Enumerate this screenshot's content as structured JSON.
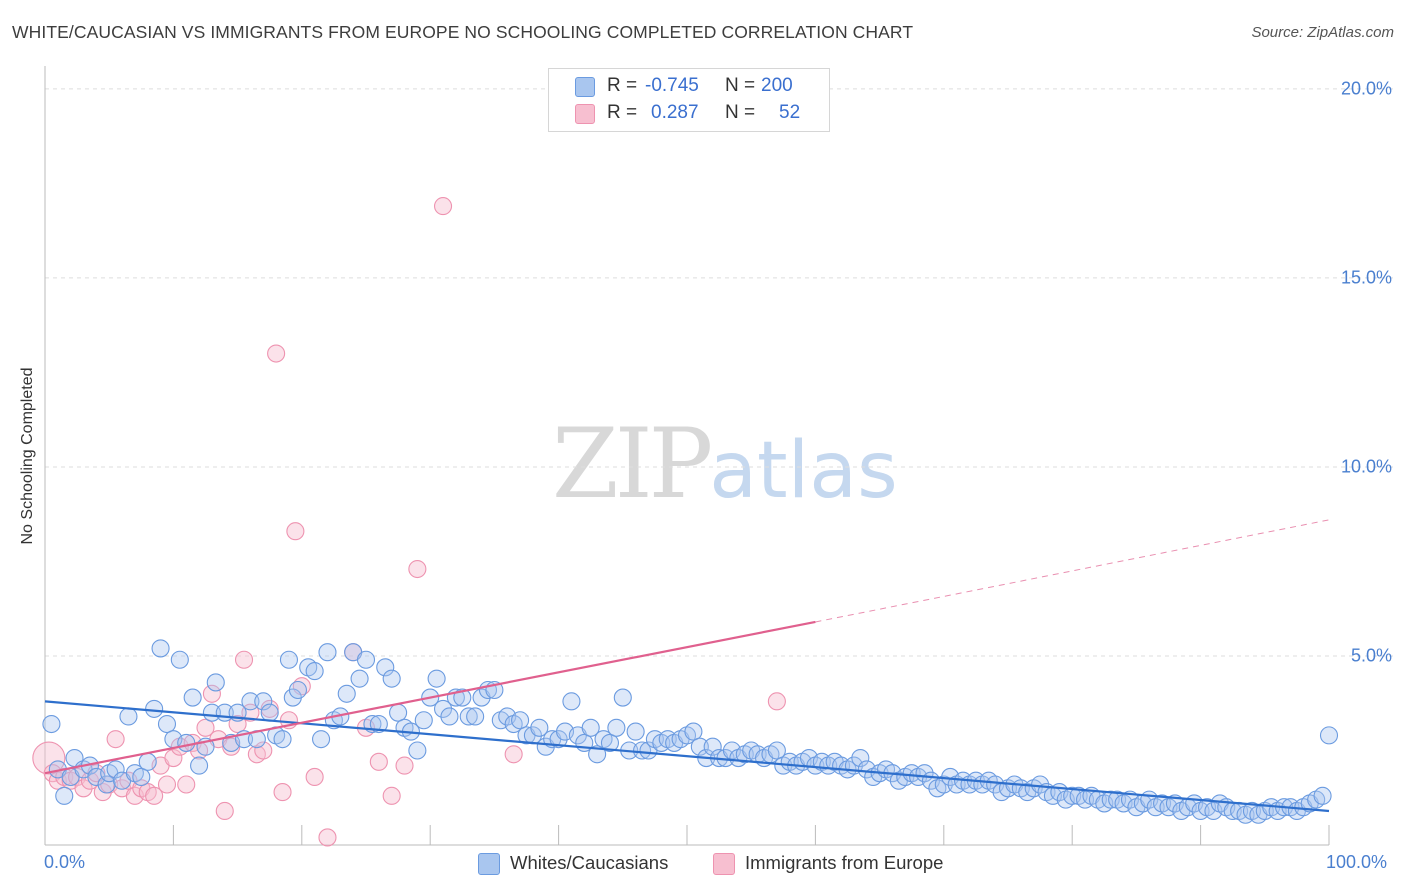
{
  "header": {
    "title": "WHITE/CAUCASIAN VS IMMIGRANTS FROM EUROPE NO SCHOOLING COMPLETED CORRELATION CHART",
    "source": "Source: ZipAtlas.com"
  },
  "watermark": {
    "zip": "ZIP",
    "atlas": "atlas"
  },
  "legend": {
    "rows": [
      {
        "r_label": "R =",
        "r_value": "-0.745",
        "n_label": "N =",
        "n_value": "200"
      },
      {
        "r_label": "R =",
        "r_value": "0.287",
        "n_label": "N =",
        "n_value": "52"
      }
    ]
  },
  "bottom_legend": {
    "items": [
      "Whites/Caucasians",
      "Immigrants from Europe"
    ]
  },
  "colors": {
    "blue_fill": "#a9c6ef",
    "blue_stroke": "#6b9be0",
    "blue_line": "#2e6fcc",
    "pink_fill": "#f7bfd0",
    "pink_stroke": "#ee93b0",
    "pink_line": "#e0608e",
    "tick_text": "#4a7fcf",
    "grid": "#dedede"
  },
  "chart_data": {
    "type": "scatter",
    "title": "WHITE/CAUCASIAN VS IMMIGRANTS FROM EUROPE NO SCHOOLING COMPLETED CORRELATION CHART",
    "xlabel": "",
    "ylabel": "No Schooling Completed",
    "xlim": [
      0,
      100
    ],
    "ylim": [
      0,
      20.5
    ],
    "x_tick_labels": [
      "0.0%",
      "100.0%"
    ],
    "y_ticks": [
      5,
      10,
      15,
      20
    ],
    "y_tick_labels": [
      "5.0%",
      "10.0%",
      "15.0%",
      "20.0%"
    ],
    "grid": true,
    "legend_position": "top-center",
    "series": [
      {
        "name": "Whites/Caucasians",
        "r": -0.745,
        "n": 200,
        "trend": {
          "x0": 0,
          "y0": 3.8,
          "x1": 100,
          "y1": 0.9
        },
        "points": [
          [
            0.5,
            3.2
          ],
          [
            1.0,
            2.0
          ],
          [
            1.5,
            1.3
          ],
          [
            2.0,
            1.8
          ],
          [
            2.3,
            2.3
          ],
          [
            3.0,
            2.0
          ],
          [
            3.5,
            2.1
          ],
          [
            4.0,
            1.8
          ],
          [
            4.8,
            1.6
          ],
          [
            5.0,
            1.9
          ],
          [
            5.5,
            2.0
          ],
          [
            6.0,
            1.7
          ],
          [
            6.5,
            3.4
          ],
          [
            7.0,
            1.9
          ],
          [
            7.5,
            1.8
          ],
          [
            8.0,
            2.2
          ],
          [
            8.5,
            3.6
          ],
          [
            9.0,
            5.2
          ],
          [
            9.5,
            3.2
          ],
          [
            10.0,
            2.8
          ],
          [
            10.5,
            4.9
          ],
          [
            11.0,
            2.7
          ],
          [
            11.5,
            3.9
          ],
          [
            12.0,
            2.1
          ],
          [
            12.5,
            2.6
          ],
          [
            13.0,
            3.5
          ],
          [
            13.3,
            4.3
          ],
          [
            14.0,
            3.5
          ],
          [
            14.5,
            2.7
          ],
          [
            15.0,
            3.5
          ],
          [
            15.5,
            2.8
          ],
          [
            16.0,
            3.8
          ],
          [
            16.5,
            2.8
          ],
          [
            17.0,
            3.8
          ],
          [
            17.5,
            3.5
          ],
          [
            18.0,
            2.9
          ],
          [
            18.5,
            2.8
          ],
          [
            19.0,
            4.9
          ],
          [
            19.3,
            3.9
          ],
          [
            19.7,
            4.1
          ],
          [
            20.5,
            4.7
          ],
          [
            21.0,
            4.6
          ],
          [
            21.5,
            2.8
          ],
          [
            22.0,
            5.1
          ],
          [
            22.5,
            3.3
          ],
          [
            23.0,
            3.4
          ],
          [
            23.5,
            4.0
          ],
          [
            24.0,
            5.1
          ],
          [
            24.5,
            4.4
          ],
          [
            25.0,
            4.9
          ],
          [
            25.5,
            3.2
          ],
          [
            26.0,
            3.2
          ],
          [
            26.5,
            4.7
          ],
          [
            27.0,
            4.4
          ],
          [
            27.5,
            3.5
          ],
          [
            28.0,
            3.1
          ],
          [
            28.5,
            3.0
          ],
          [
            29.0,
            2.5
          ],
          [
            29.5,
            3.3
          ],
          [
            30.0,
            3.9
          ],
          [
            30.5,
            4.4
          ],
          [
            31.0,
            3.6
          ],
          [
            31.5,
            3.4
          ],
          [
            32.0,
            3.9
          ],
          [
            32.5,
            3.9
          ],
          [
            33.0,
            3.4
          ],
          [
            33.5,
            3.4
          ],
          [
            34.0,
            3.9
          ],
          [
            34.5,
            4.1
          ],
          [
            35.0,
            4.1
          ],
          [
            35.5,
            3.3
          ],
          [
            36.0,
            3.4
          ],
          [
            36.5,
            3.2
          ],
          [
            37.0,
            3.3
          ],
          [
            37.5,
            2.9
          ],
          [
            38.0,
            2.9
          ],
          [
            38.5,
            3.1
          ],
          [
            39.0,
            2.6
          ],
          [
            39.5,
            2.8
          ],
          [
            40.0,
            2.8
          ],
          [
            40.5,
            3.0
          ],
          [
            41.0,
            3.8
          ],
          [
            41.5,
            2.9
          ],
          [
            42.0,
            2.7
          ],
          [
            42.5,
            3.1
          ],
          [
            43.0,
            2.4
          ],
          [
            43.5,
            2.8
          ],
          [
            44.0,
            2.7
          ],
          [
            44.5,
            3.1
          ],
          [
            45.0,
            3.9
          ],
          [
            45.5,
            2.5
          ],
          [
            46.0,
            3.0
          ],
          [
            46.5,
            2.5
          ],
          [
            47.0,
            2.5
          ],
          [
            47.5,
            2.8
          ],
          [
            48.0,
            2.7
          ],
          [
            48.5,
            2.8
          ],
          [
            49.0,
            2.7
          ],
          [
            49.5,
            2.8
          ],
          [
            50.0,
            2.9
          ],
          [
            50.5,
            3.0
          ],
          [
            51.0,
            2.6
          ],
          [
            51.5,
            2.3
          ],
          [
            52.0,
            2.6
          ],
          [
            52.5,
            2.3
          ],
          [
            53.0,
            2.3
          ],
          [
            53.5,
            2.5
          ],
          [
            54.0,
            2.3
          ],
          [
            54.5,
            2.4
          ],
          [
            55.0,
            2.5
          ],
          [
            55.5,
            2.4
          ],
          [
            56.0,
            2.3
          ],
          [
            56.5,
            2.4
          ],
          [
            57.0,
            2.5
          ],
          [
            57.5,
            2.1
          ],
          [
            58.0,
            2.2
          ],
          [
            58.5,
            2.1
          ],
          [
            59.0,
            2.2
          ],
          [
            59.5,
            2.3
          ],
          [
            60.0,
            2.1
          ],
          [
            60.5,
            2.2
          ],
          [
            61.0,
            2.1
          ],
          [
            61.5,
            2.2
          ],
          [
            62.0,
            2.1
          ],
          [
            62.5,
            2.0
          ],
          [
            63.0,
            2.1
          ],
          [
            63.5,
            2.3
          ],
          [
            64.0,
            2.0
          ],
          [
            64.5,
            1.8
          ],
          [
            65.0,
            1.9
          ],
          [
            65.5,
            2.0
          ],
          [
            66.0,
            1.9
          ],
          [
            66.5,
            1.7
          ],
          [
            67.0,
            1.8
          ],
          [
            67.5,
            1.9
          ],
          [
            68.0,
            1.8
          ],
          [
            68.5,
            1.9
          ],
          [
            69.0,
            1.7
          ],
          [
            69.5,
            1.5
          ],
          [
            70.0,
            1.6
          ],
          [
            70.5,
            1.8
          ],
          [
            71.0,
            1.6
          ],
          [
            71.5,
            1.7
          ],
          [
            72.0,
            1.6
          ],
          [
            72.5,
            1.7
          ],
          [
            73.0,
            1.6
          ],
          [
            73.5,
            1.7
          ],
          [
            74.0,
            1.6
          ],
          [
            74.5,
            1.4
          ],
          [
            75.0,
            1.5
          ],
          [
            75.5,
            1.6
          ],
          [
            76.0,
            1.5
          ],
          [
            76.5,
            1.4
          ],
          [
            77.0,
            1.5
          ],
          [
            77.5,
            1.6
          ],
          [
            78.0,
            1.4
          ],
          [
            78.5,
            1.3
          ],
          [
            79.0,
            1.4
          ],
          [
            79.5,
            1.2
          ],
          [
            80.0,
            1.3
          ],
          [
            80.5,
            1.3
          ],
          [
            81.0,
            1.2
          ],
          [
            81.5,
            1.3
          ],
          [
            82.0,
            1.2
          ],
          [
            82.5,
            1.1
          ],
          [
            83.0,
            1.2
          ],
          [
            83.5,
            1.2
          ],
          [
            84.0,
            1.1
          ],
          [
            84.5,
            1.2
          ],
          [
            85.0,
            1.0
          ],
          [
            85.5,
            1.1
          ],
          [
            86.0,
            1.2
          ],
          [
            86.5,
            1.0
          ],
          [
            87.0,
            1.1
          ],
          [
            87.5,
            1.0
          ],
          [
            88.0,
            1.1
          ],
          [
            88.5,
            0.9
          ],
          [
            89.0,
            1.0
          ],
          [
            89.5,
            1.1
          ],
          [
            90.0,
            0.9
          ],
          [
            90.5,
            1.0
          ],
          [
            91.0,
            0.9
          ],
          [
            91.5,
            1.1
          ],
          [
            92.0,
            1.0
          ],
          [
            92.5,
            0.9
          ],
          [
            93.0,
            0.9
          ],
          [
            93.5,
            0.8
          ],
          [
            94.0,
            0.9
          ],
          [
            94.5,
            0.8
          ],
          [
            95.0,
            0.9
          ],
          [
            95.5,
            1.0
          ],
          [
            96.0,
            0.9
          ],
          [
            96.5,
            1.0
          ],
          [
            97.0,
            1.0
          ],
          [
            97.5,
            0.9
          ],
          [
            98.0,
            1.0
          ],
          [
            98.5,
            1.1
          ],
          [
            99.0,
            1.2
          ],
          [
            99.5,
            1.3
          ],
          [
            100.0,
            2.9
          ]
        ]
      },
      {
        "name": "Immigrants from Europe",
        "r": 0.287,
        "n": 52,
        "trend": {
          "x0": 0,
          "y0": 1.9,
          "x1": 60,
          "y1": 5.9
        },
        "trend_extension": {
          "x0": 60,
          "y0": 5.9,
          "x1": 100,
          "y1": 8.6
        },
        "points": [
          [
            0.3,
            2.3
          ],
          [
            0.6,
            1.9
          ],
          [
            1.0,
            1.7
          ],
          [
            1.5,
            1.8
          ],
          [
            2.0,
            1.7
          ],
          [
            2.5,
            1.8
          ],
          [
            3.0,
            1.5
          ],
          [
            3.5,
            1.7
          ],
          [
            4.0,
            1.9
          ],
          [
            4.5,
            1.4
          ],
          [
            5.0,
            1.6
          ],
          [
            5.5,
            2.8
          ],
          [
            6.0,
            1.5
          ],
          [
            6.5,
            1.7
          ],
          [
            7.0,
            1.3
          ],
          [
            7.5,
            1.5
          ],
          [
            8.0,
            1.4
          ],
          [
            8.5,
            1.3
          ],
          [
            9.0,
            2.1
          ],
          [
            9.5,
            1.6
          ],
          [
            10.0,
            2.3
          ],
          [
            10.5,
            2.6
          ],
          [
            11.0,
            1.6
          ],
          [
            11.5,
            2.7
          ],
          [
            12.0,
            2.5
          ],
          [
            12.5,
            3.1
          ],
          [
            13.0,
            4.0
          ],
          [
            13.5,
            2.8
          ],
          [
            14.0,
            0.9
          ],
          [
            14.5,
            2.6
          ],
          [
            15.0,
            3.2
          ],
          [
            15.5,
            4.9
          ],
          [
            16.0,
            3.5
          ],
          [
            16.5,
            2.4
          ],
          [
            17.0,
            2.5
          ],
          [
            17.5,
            3.6
          ],
          [
            18.0,
            13.0
          ],
          [
            18.5,
            1.4
          ],
          [
            19.0,
            3.3
          ],
          [
            19.5,
            8.3
          ],
          [
            20.0,
            4.2
          ],
          [
            21.0,
            1.8
          ],
          [
            22.0,
            0.2
          ],
          [
            24.0,
            5.1
          ],
          [
            25.0,
            3.1
          ],
          [
            26.0,
            2.2
          ],
          [
            27.0,
            1.3
          ],
          [
            28.0,
            2.1
          ],
          [
            29.0,
            7.3
          ],
          [
            31.0,
            16.9
          ],
          [
            36.5,
            2.4
          ],
          [
            57.0,
            3.8
          ]
        ]
      }
    ]
  }
}
